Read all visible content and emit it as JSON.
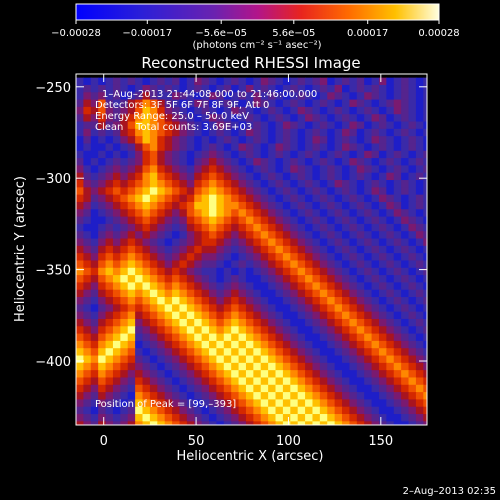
{
  "chart_data": {
    "type": "heatmap",
    "title": "Reconstructed RHESSI Image",
    "xlabel": "Heliocentric X (arcsec)",
    "ylabel": "Heliocentric Y (arcsec)",
    "xlim": [
      -15,
      175
    ],
    "ylim": [
      -435,
      -243
    ],
    "x_ticks": [
      0,
      50,
      100,
      150
    ],
    "y_ticks": [
      -400,
      -350,
      -300,
      -250
    ],
    "x_tick_labels": [
      "0",
      "50",
      "100",
      "150"
    ],
    "y_tick_labels": [
      "−400",
      "−350",
      "−300",
      "−250"
    ],
    "colorbar": {
      "min": -0.00028,
      "max": 0.00028,
      "ticks": [
        -0.00028,
        -0.00017,
        -5.6e-05,
        5.6e-05,
        0.00017,
        0.00028
      ],
      "tick_labels": [
        "−0.00028",
        "−0.00017",
        "−5.6e−05",
        "5.6e−05",
        "0.00017",
        "0.00028"
      ],
      "unit_label": "(photons cm⁻² s⁻¹ asec⁻²)"
    },
    "annotations": [
      "1–Aug–2013 21:44:08.000 to 21:46:00.000",
      "Detectors: 3F 5F 6F 7F 8F 9F, Att 0",
      "Energy Range: 25.0 – 50.0 keV",
      "Clean    Total counts: 3.69E+03",
      "Position of Peak = [99,–393]"
    ],
    "timestamp": "2–Aug–2013 02:35",
    "peak": [
      99,
      -393
    ],
    "grid": {
      "x0": -15,
      "y0": -245,
      "dx": 4,
      "dy": -4,
      "rows": [
        "10101212101212013210121013210121230121201301210120",
        "12121210132121012101201312101210121301212101210121",
        "13231201242113210132012131210121013210132101210121",
        "24362124576421013201210132101210121013210123210121",
        "35463234687532101210132101210132101210121013210132",
        "24353245787643210132101210121013210121013201210121",
        "12242346887654321013210121013210121013201210121013",
        "13121245787654321012101321012101210132012101210121",
        "02010134687543210101210121012101320121013210121013",
        "01001012467543210121013210132101210132101210121012",
        "10010101356432101232101210121012101210132012101210",
        "20101212356432102343210132101210121013210121012101",
        "31012323467543213454321012101321012101321012101210",
        "42123434578654324565432101210121012101210132012101",
        "53234545678765435676543210121012101321012101210121",
        "64345656789876546787654321012101210121013201210121",
        "54234567898765457898765432101210121012101321012101",
        "43123456787654568898776543210121012101210132012101",
        "32012345676543467898767654321012101210121013210121",
        "21001234565432356787656765432101210121012101321012",
        "10012123454321245676545676543210121012101210132101",
        "21023234343210134565434567654321012101210121013210",
        "32134345432101234554323456765432101210121012101321",
        "43245456543212345443212345676543210121012101210132",
        "54356567654323454332101234567654321012101210121013",
        "65467678765434543221012123456765432101210121012101",
        "76578789876545432110101012345676543210121012101210",
        "65467898987656543210121001234567654321012101210121",
        "54356789898767654321232100123456765432101210121012",
        "43245678789878765432343210012345676543210121012101",
        "32134567678989876543454321001234567654321012101210",
        "21023456567898987654565432100123456765432101210121",
        "32134567456789898765676543210012345676543210121012",
        "43245678345678989876787654321001234567654321012101",
        "54356789234567898987898765432100123456765432101210",
        "65467898123456789898989876543210012345676543210121",
        "76578987012345678989898987654321001234567654321012",
        "87689876101234567898989898765432100123456765432101",
        "98798765210123456789898989876543210012345676543210",
        "87687654321012345678989898987654321001234567654321",
        "76576543432101234567898989898765432100123456765432",
        "65465432543210123456789898989876543210012345676543",
        "54354321654321012345678989898987654321001234567654",
        "43243210765432101234567898989898765432100123456765",
        "32132101876543210123456789898989876543210012345676",
        "21021012987654321012345678989898987654321001234567",
        "32132123898765432101234567898989898765432100123456",
        "43243234789876543210123456789898989876543210012345"
      ]
    }
  }
}
